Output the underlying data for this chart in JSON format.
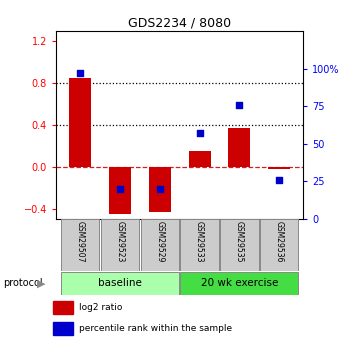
{
  "title": "GDS2234 / 8080",
  "samples": [
    "GSM29507",
    "GSM29523",
    "GSM29529",
    "GSM29533",
    "GSM29535",
    "GSM29536"
  ],
  "log2_ratio": [
    0.85,
    -0.45,
    -0.43,
    0.15,
    0.37,
    -0.02
  ],
  "percentile_rank": [
    97,
    20,
    20,
    57,
    76,
    26
  ],
  "bar_color": "#CC0000",
  "dot_color": "#0000CC",
  "ylim_left": [
    -0.5,
    1.3
  ],
  "ylim_right": [
    0,
    125
  ],
  "yticks_left": [
    -0.4,
    0.0,
    0.4,
    0.8,
    1.2
  ],
  "yticks_right": [
    0,
    25,
    50,
    75,
    100
  ],
  "ytick_labels_right": [
    "0",
    "25",
    "50",
    "75",
    "100%"
  ],
  "hlines": [
    0.8,
    0.4
  ],
  "hline_zero_color": "#CC2222",
  "groups": [
    {
      "label": "baseline",
      "start": 0,
      "end": 2,
      "color": "#AAFFAA"
    },
    {
      "label": "20 wk exercise",
      "start": 3,
      "end": 5,
      "color": "#44DD44"
    }
  ],
  "legend_items": [
    {
      "label": "log2 ratio",
      "color": "#CC0000"
    },
    {
      "label": "percentile rank within the sample",
      "color": "#0000CC"
    }
  ],
  "bar_width": 0.55,
  "plot_bg_color": "#ffffff"
}
